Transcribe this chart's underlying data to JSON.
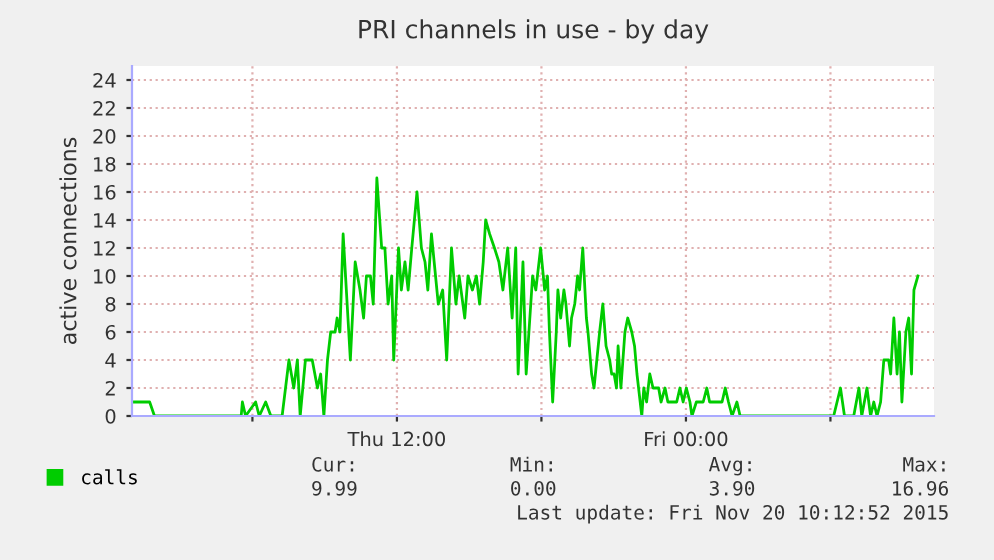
{
  "chart_data": {
    "type": "line",
    "title": "PRI channels in use - by day",
    "ylabel": "active connections",
    "x": [
      "2015-11-19T01:06",
      "2015-11-19T01:44",
      "2015-11-19T01:56",
      "2015-11-19T05:32",
      "2015-11-19T05:35",
      "2015-11-19T05:43",
      "2015-11-19T06:08",
      "2015-11-19T06:17",
      "2015-11-19T06:33",
      "2015-11-19T06:46",
      "2015-11-19T07:14",
      "2015-11-19T07:31",
      "2015-11-19T07:43",
      "2015-11-19T07:52",
      "2015-11-19T07:59",
      "2015-11-19T08:12",
      "2015-11-19T08:29",
      "2015-11-19T08:42",
      "2015-11-19T08:50",
      "2015-11-19T08:58",
      "2015-11-19T09:07",
      "2015-11-19T09:15",
      "2015-11-19T09:26",
      "2015-11-19T09:31",
      "2015-11-19T09:38",
      "2015-11-19T09:46",
      "2015-11-19T10:04",
      "2015-11-19T10:16",
      "2015-11-19T10:28",
      "2015-11-19T10:37",
      "2015-11-19T10:44",
      "2015-11-19T10:54",
      "2015-11-19T11:01",
      "2015-11-19T11:10",
      "2015-11-19T11:22",
      "2015-11-19T11:30",
      "2015-11-19T11:38",
      "2015-11-19T11:47",
      "2015-11-19T11:52",
      "2015-11-19T12:04",
      "2015-11-19T12:11",
      "2015-11-19T12:20",
      "2015-11-19T12:28",
      "2015-11-19T12:37",
      "2015-11-19T12:50",
      "2015-11-19T13:01",
      "2015-11-19T13:10",
      "2015-11-19T13:17",
      "2015-11-19T13:26",
      "2015-11-19T13:43",
      "2015-11-19T13:54",
      "2015-11-19T14:04",
      "2015-11-19T14:16",
      "2015-11-19T14:27",
      "2015-11-19T14:35",
      "2015-11-19T14:49",
      "2015-11-19T14:57",
      "2015-11-19T15:08",
      "2015-11-19T15:18",
      "2015-11-19T15:26",
      "2015-11-19T15:35",
      "2015-11-19T15:41",
      "2015-11-19T15:51",
      "2015-11-19T16:03",
      "2015-11-19T16:14",
      "2015-11-19T16:24",
      "2015-11-19T16:36",
      "2015-11-19T16:47",
      "2015-11-19T16:56",
      "2015-11-19T17:02",
      "2015-11-19T17:14",
      "2015-11-19T17:22",
      "2015-11-19T17:38",
      "2015-11-19T17:46",
      "2015-11-19T17:58",
      "2015-11-19T18:08",
      "2015-11-19T18:15",
      "2015-11-19T18:20",
      "2015-11-19T18:28",
      "2015-11-19T18:37",
      "2015-11-19T18:41",
      "2015-11-19T18:48",
      "2015-11-19T18:56",
      "2015-11-19T19:01",
      "2015-11-19T19:10",
      "2015-11-19T19:15",
      "2015-11-19T19:23",
      "2015-11-19T19:30",
      "2015-11-19T19:35",
      "2015-11-19T19:43",
      "2015-11-19T19:52",
      "2015-11-19T19:56",
      "2015-11-19T20:05",
      "2015-11-19T20:11",
      "2015-11-19T20:25",
      "2015-11-19T20:33",
      "2015-11-19T20:41",
      "2015-11-19T20:50",
      "2015-11-19T20:55",
      "2015-11-19T21:01",
      "2015-11-19T21:07",
      "2015-11-19T21:11",
      "2015-11-19T21:18",
      "2015-11-19T21:28",
      "2015-11-19T21:35",
      "2015-11-19T21:45",
      "2015-11-19T21:52",
      "2015-11-19T21:58",
      "2015-11-19T22:10",
      "2015-11-19T22:15",
      "2015-11-19T22:22",
      "2015-11-19T22:30",
      "2015-11-19T22:38",
      "2015-11-19T22:52",
      "2015-11-19T22:58",
      "2015-11-19T23:08",
      "2015-11-19T23:15",
      "2015-11-19T23:37",
      "2015-11-19T23:45",
      "2015-11-19T23:53",
      "2015-11-20T00:01",
      "2015-11-20T00:10",
      "2015-11-20T00:15",
      "2015-11-20T00:26",
      "2015-11-20T00:43",
      "2015-11-20T00:52",
      "2015-11-20T00:59",
      "2015-11-20T01:30",
      "2015-11-20T01:38",
      "2015-11-20T01:46",
      "2015-11-20T01:55",
      "2015-11-20T02:07",
      "2015-11-20T02:15",
      "2015-11-20T06:08",
      "2015-11-20T06:25",
      "2015-11-20T06:35",
      "2015-11-20T06:58",
      "2015-11-20T07:11",
      "2015-11-20T07:18",
      "2015-11-20T07:31",
      "2015-11-20T07:40",
      "2015-11-20T07:48",
      "2015-11-20T07:56",
      "2015-11-20T08:05",
      "2015-11-20T08:13",
      "2015-11-20T08:25",
      "2015-11-20T08:30",
      "2015-11-20T08:38",
      "2015-11-20T08:46",
      "2015-11-20T08:52",
      "2015-11-20T08:58",
      "2015-11-20T09:08",
      "2015-11-20T09:15",
      "2015-11-20T09:22",
      "2015-11-20T09:28",
      "2015-11-20T09:38"
    ],
    "series": [
      {
        "name": "calls",
        "color": "#00cc00",
        "values": [
          1,
          1,
          0,
          0,
          1,
          0,
          1,
          0,
          1,
          0,
          0,
          4,
          2,
          4,
          0,
          4,
          4,
          2,
          3,
          0,
          4,
          6,
          6,
          7,
          6,
          13,
          4,
          11,
          9,
          7,
          10,
          10,
          8,
          17,
          12,
          12,
          8,
          10,
          4,
          12,
          9,
          11,
          9,
          12,
          16,
          12,
          11,
          9,
          13,
          8,
          9,
          4,
          12,
          8,
          10,
          7,
          10,
          9,
          10,
          8,
          11,
          14,
          13,
          12,
          11,
          9,
          12,
          7,
          12,
          3,
          11,
          3,
          10,
          9,
          12,
          9,
          10,
          6,
          1,
          6,
          9,
          7,
          9,
          8,
          5,
          7,
          8,
          10,
          9,
          12,
          7,
          6,
          3,
          2,
          6,
          8,
          5,
          4,
          3,
          3,
          2,
          5,
          2,
          6,
          7,
          6,
          5,
          3,
          0,
          2,
          1,
          3,
          2,
          2,
          1,
          2,
          1,
          1,
          2,
          1,
          2,
          1,
          0,
          1,
          1,
          2,
          1,
          1,
          2,
          1,
          0,
          1,
          0,
          0,
          2,
          0,
          0,
          2,
          0,
          2,
          0,
          1,
          0,
          1,
          4,
          4,
          3,
          7,
          3,
          6,
          1,
          6,
          7,
          3,
          9,
          10
        ]
      }
    ],
    "xlim": [
      "2015-11-19T01:00",
      "2015-11-20T10:18"
    ],
    "ylim": [
      0,
      25
    ],
    "xticks": [
      {
        "value": "2015-11-19T06:00",
        "label": null
      },
      {
        "value": "2015-11-19T12:00",
        "label": "Thu 12:00"
      },
      {
        "value": "2015-11-19T18:00",
        "label": null
      },
      {
        "value": "2015-11-20T00:00",
        "label": "Fri 00:00"
      },
      {
        "value": "2015-11-20T06:00",
        "label": null
      }
    ],
    "yticks": [
      0,
      2,
      4,
      6,
      8,
      10,
      12,
      14,
      16,
      18,
      20,
      22,
      24
    ],
    "grid": true,
    "legend": "bottom left",
    "annotations": [
      "Cur:",
      "Min:",
      "Avg:",
      "Max:",
      "9.99",
      "0.00",
      "3.90",
      "16.96",
      "Last update: Fri Nov 20 10:12:52 2015"
    ]
  }
}
